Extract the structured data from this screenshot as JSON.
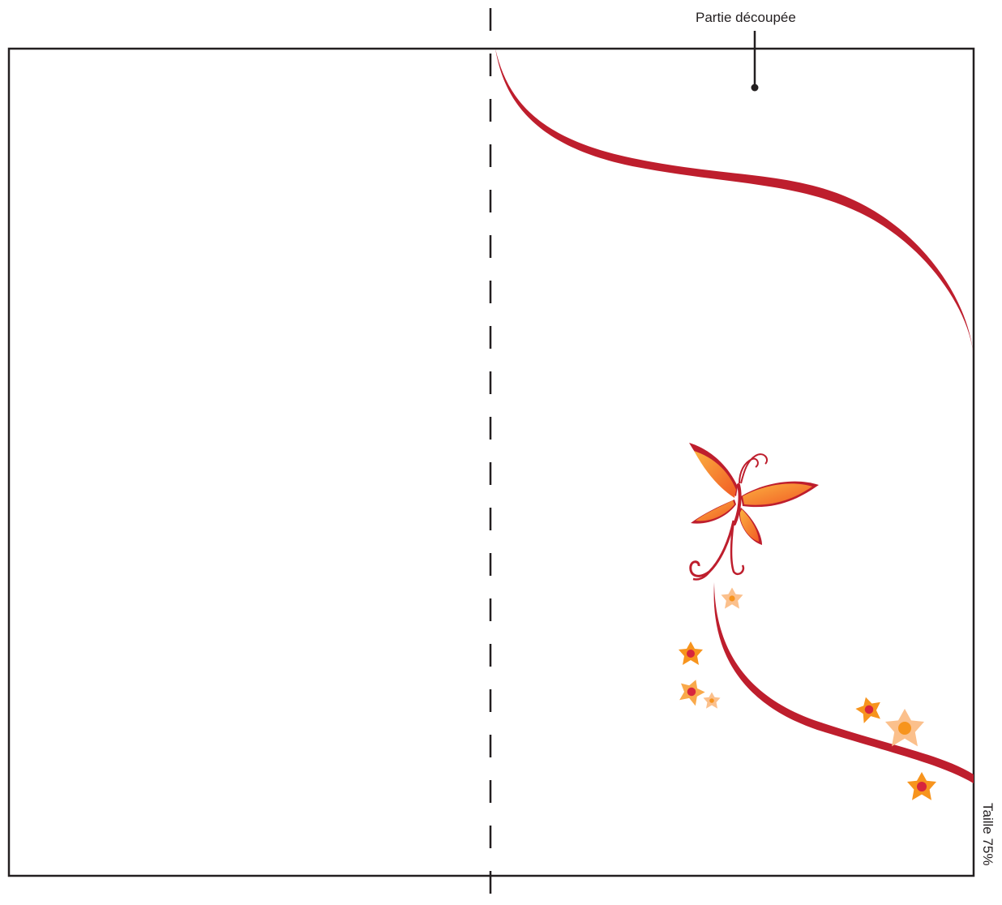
{
  "labels": {
    "cut_part": "Partie découpée",
    "size": "Taille 75%"
  },
  "colors": {
    "outline": "#231f20",
    "ribbon": "#be1e2d",
    "wing_orange": "#f7941d",
    "wing_light": "#fbb040",
    "flower_orange": "#f7941d",
    "flower_peach": "#fbc08c",
    "flower_center": "#d7263d"
  },
  "icons": {
    "butterfly": "butterfly-icon",
    "flower": "flower-icon"
  }
}
